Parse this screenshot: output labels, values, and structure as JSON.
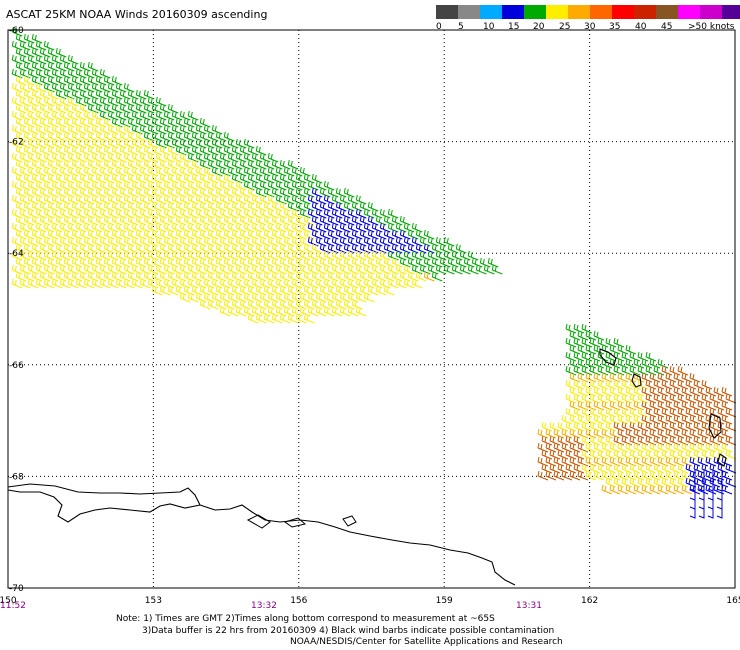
{
  "title": "ASCAT 25KM NOAA Winds 20160309 ascending",
  "colorbar": {
    "colors": [
      "#444444",
      "#888888",
      "#00aaff",
      "#0000dd",
      "#00aa00",
      "#ffee00",
      "#ffaa00",
      "#ff6600",
      "#ff0000",
      "#cc2200",
      "#885522",
      "#ff00ff",
      "#cc00cc",
      "#550099"
    ],
    "labels": [
      "0",
      "5",
      "10",
      "15",
      "20",
      "25",
      "30",
      "35",
      "40",
      "45",
      ">50 knots"
    ]
  },
  "axes": {
    "lon_labels": [
      "150",
      "153",
      "156",
      "159",
      "162",
      "165"
    ],
    "lat_labels": [
      "-60",
      "-62",
      "-64",
      "-66",
      "-68",
      "-70"
    ],
    "time_labels": [
      "11:52",
      "13:32",
      "13:31"
    ]
  },
  "notes": [
    "Note: 1) Times are GMT 2)Times along bottom correspond to measurement at ~65S",
    "3)Data buffer is 22 hrs from 20160309 4) Black wind barbs indicate possible contamination",
    "NOAA/NESDIS/Center for Satellite Applications and Research"
  ],
  "map_data": {
    "lon_range": [
      150,
      165
    ],
    "lat_range": [
      -60,
      -70
    ],
    "wind_colors": {
      "calm": "#0000dd",
      "light": "#00aa00",
      "moderate": "#ffee00",
      "fresh": "#ffaa00",
      "strong": "#cc5500"
    }
  }
}
